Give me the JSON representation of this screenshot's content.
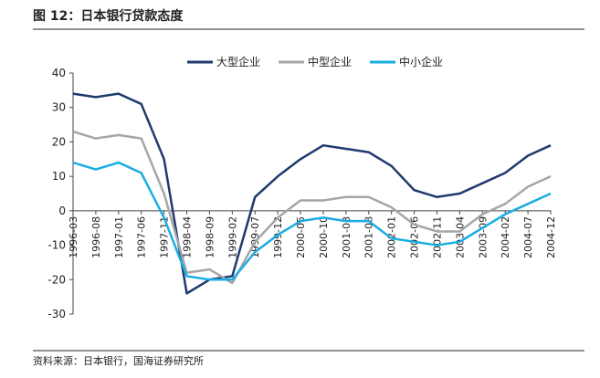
{
  "chart_data": {
    "type": "line",
    "title": "图 12：日本银行贷款态度",
    "source": "资料来源：日本银行，国海证券研究所",
    "categories": [
      "1996-03",
      "1996-08",
      "1997-01",
      "1997-06",
      "1997-11",
      "1998-04",
      "1998-09",
      "1999-02",
      "1999-07",
      "1999-12",
      "2000-05",
      "2000-10",
      "2001-03",
      "2001-08",
      "2002-01",
      "2002-06",
      "2002-11",
      "2003-04",
      "2003-09",
      "2004-02",
      "2004-07",
      "2004-12"
    ],
    "series": [
      {
        "name": "大型企业",
        "color": "#1f3a6e",
        "values": [
          34,
          33,
          34,
          31,
          15,
          -24,
          -20,
          -19,
          4,
          10,
          15,
          19,
          18,
          17,
          13,
          6,
          4,
          5,
          8,
          11,
          16,
          19
        ]
      },
      {
        "name": "中型企业",
        "color": "#a6a6a6",
        "values": [
          23,
          21,
          22,
          21,
          5,
          -18,
          -17,
          -21,
          -9,
          -2,
          3,
          3,
          4,
          4,
          1,
          -4,
          -6,
          -6,
          -1,
          2,
          7,
          10
        ]
      },
      {
        "name": "中小企业",
        "color": "#1aade4",
        "values": [
          14,
          12,
          14,
          11,
          -2,
          -19,
          -20,
          -20,
          -12,
          -7,
          -3,
          -2,
          -3,
          -3,
          -8,
          -9,
          -10,
          -9,
          -5,
          -1,
          2,
          5
        ]
      }
    ],
    "ylim": [
      -30,
      40
    ],
    "yticks": [
      -30,
      -20,
      -10,
      0,
      10,
      20,
      30,
      40
    ],
    "legend": "top"
  }
}
